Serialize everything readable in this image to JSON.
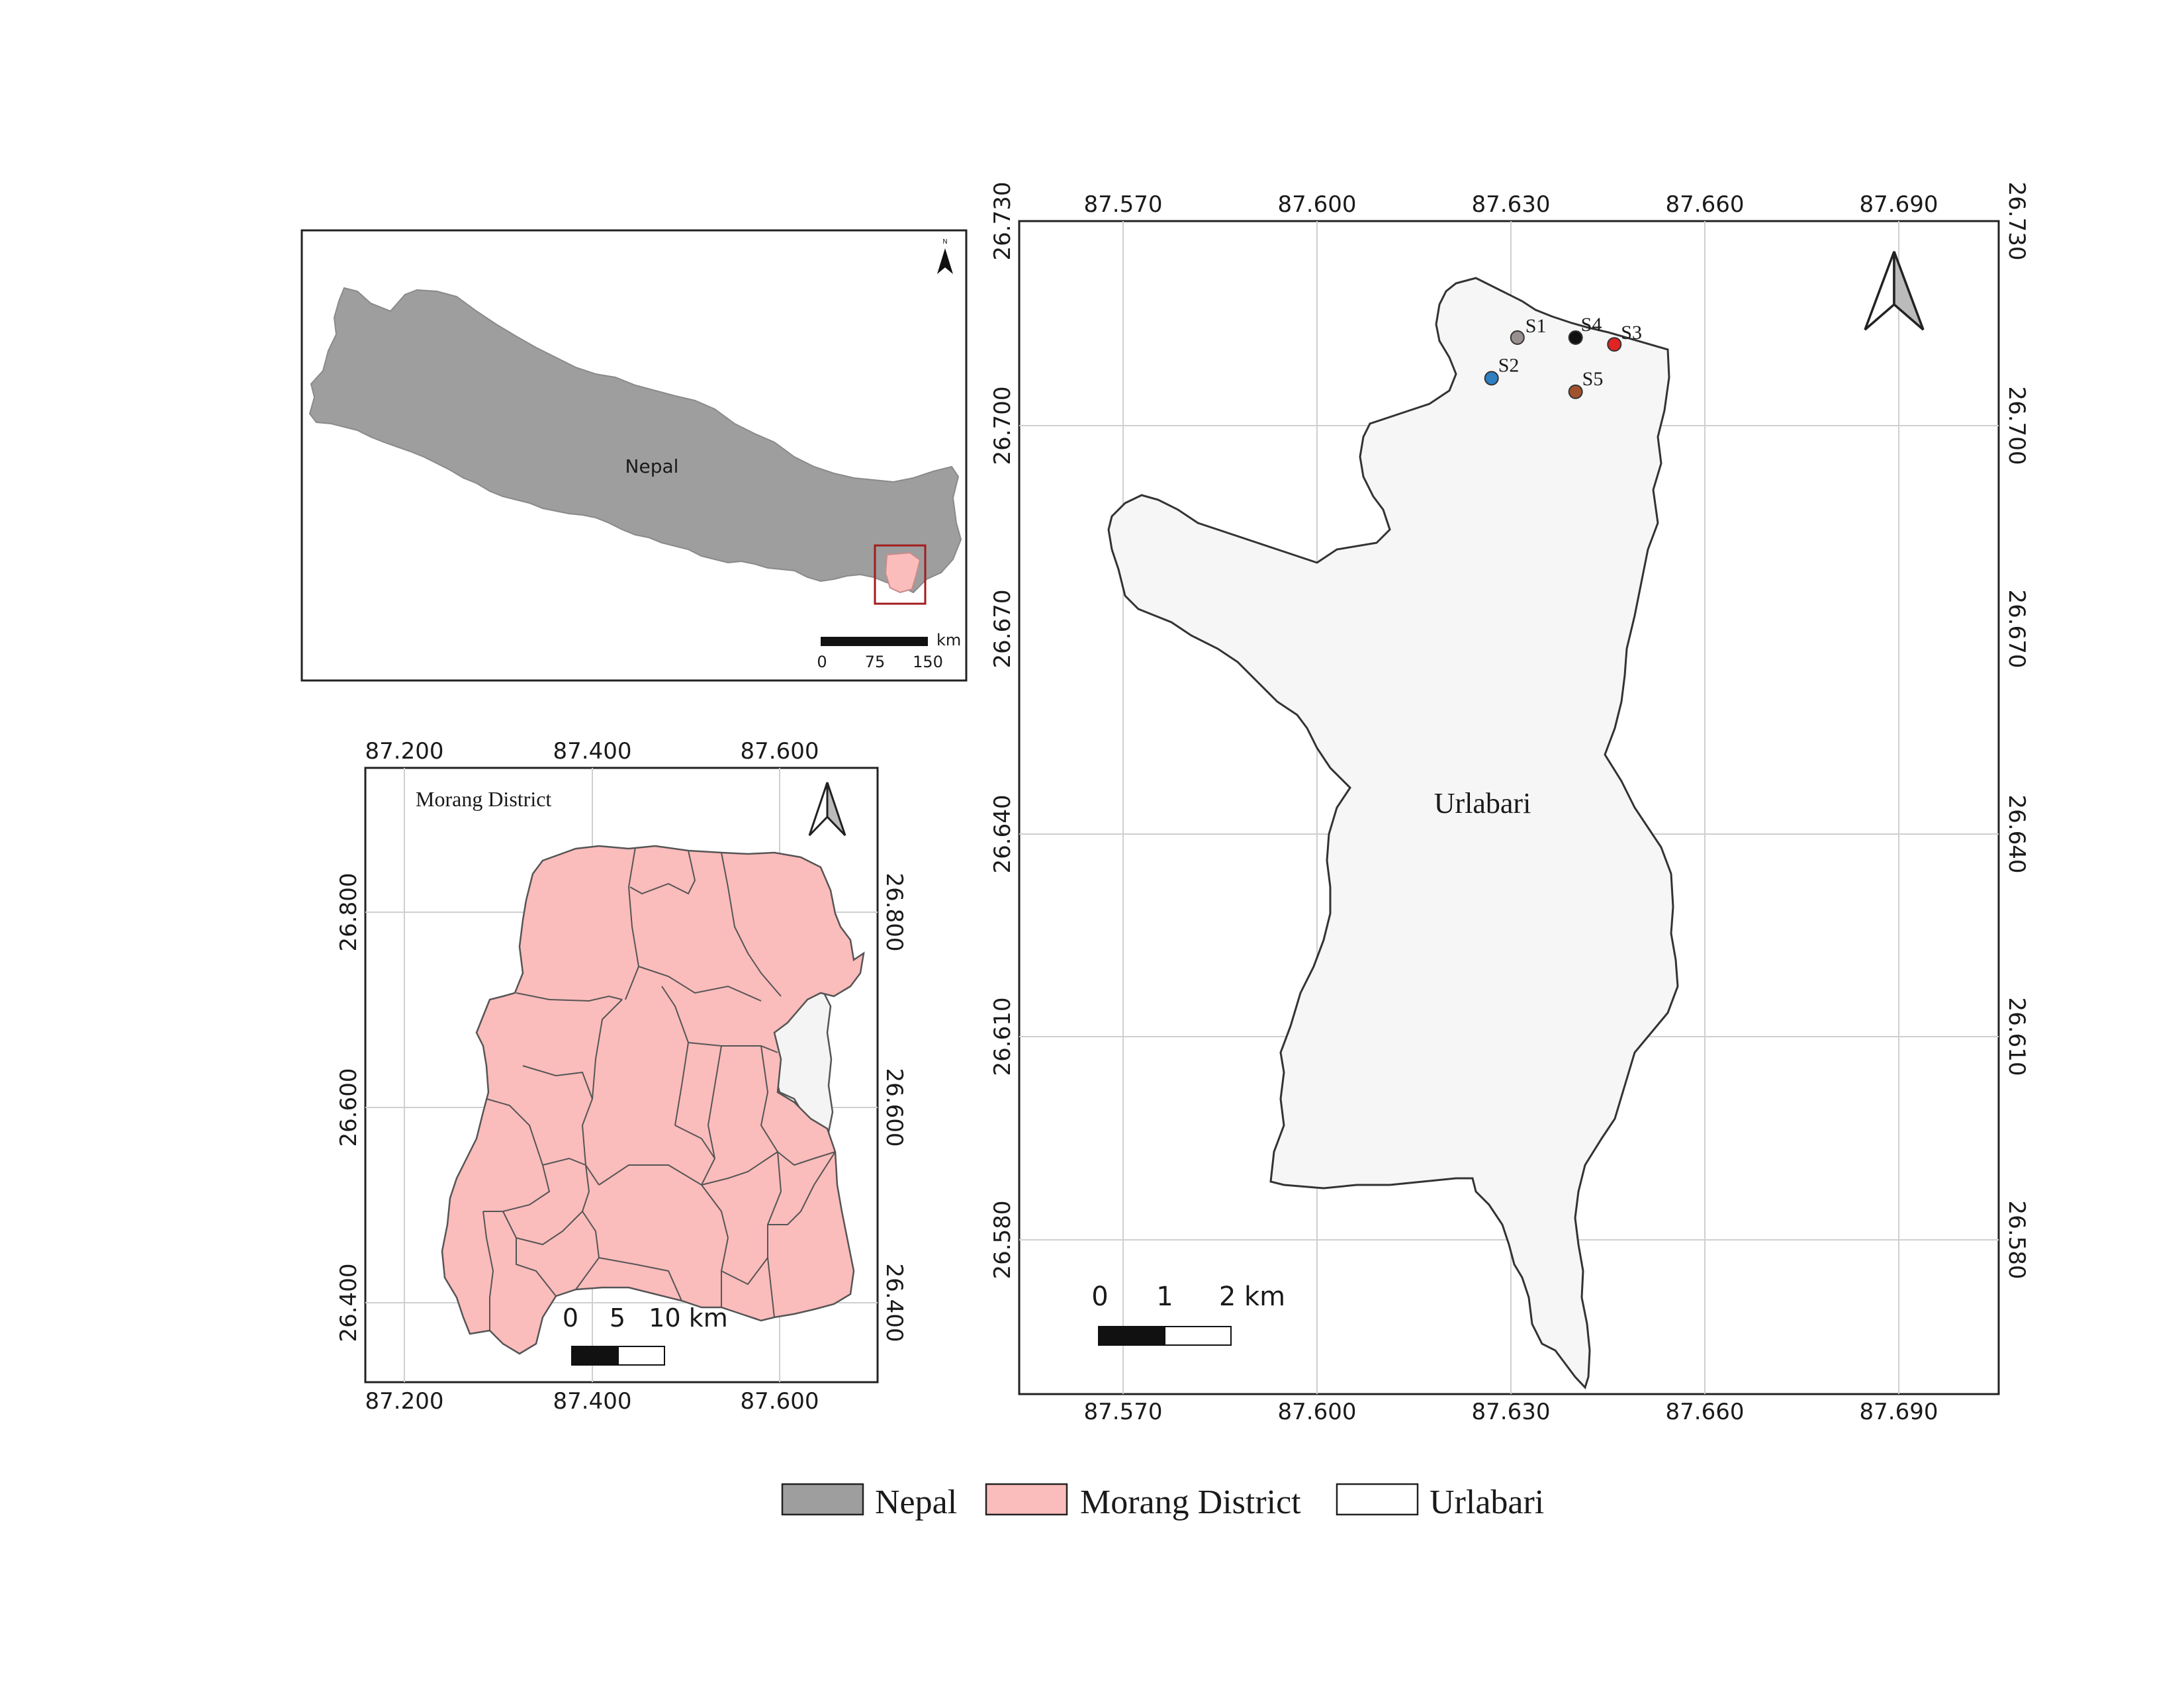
{
  "inset_nepal": {
    "country_label": "Nepal",
    "north_letter": "N",
    "scale_unit": "km",
    "scale_ticks": [
      "0",
      "75",
      "150"
    ],
    "colors": {
      "country": "#9e9e9e",
      "district": "#fbbcbc",
      "extent_box": "#a31d1d"
    }
  },
  "morang_map": {
    "title": "Morang District",
    "x_ticks": [
      "87.200",
      "87.400",
      "87.600"
    ],
    "y_ticks": [
      "26.800",
      "26.600",
      "26.400"
    ],
    "scale_ticks": [
      "0",
      "5",
      "10 km"
    ],
    "colors": {
      "district": "#fbbcbc",
      "neighbor": "#f4f4f4"
    }
  },
  "urlabari_map": {
    "area_label": "Urlabari",
    "x_ticks": [
      "87.570",
      "87.600",
      "87.630",
      "87.660",
      "87.690"
    ],
    "y_ticks": [
      "26.730",
      "26.700",
      "26.670",
      "26.640",
      "26.610",
      "26.580"
    ],
    "scale_ticks": [
      "0",
      "1",
      "2 km"
    ],
    "colors": {
      "area": "#f6f6f6"
    },
    "sites": [
      {
        "label": "S1",
        "lon": 87.631,
        "lat": 26.713,
        "color": "#9a8f8f"
      },
      {
        "label": "S2",
        "lon": 87.627,
        "lat": 26.707,
        "color": "#2f7fc1"
      },
      {
        "label": "S3",
        "lon": 87.646,
        "lat": 26.712,
        "color": "#e02323"
      },
      {
        "label": "S4",
        "lon": 87.64,
        "lat": 26.713,
        "color": "#111111"
      },
      {
        "label": "S5",
        "lon": 87.64,
        "lat": 26.705,
        "color": "#a0522d"
      }
    ]
  },
  "legend": {
    "items": [
      {
        "label": "Nepal",
        "color": "#9e9e9e"
      },
      {
        "label": "Morang District",
        "color": "#fbbcbc"
      },
      {
        "label": "Urlabari",
        "color": "#ffffff"
      }
    ]
  }
}
